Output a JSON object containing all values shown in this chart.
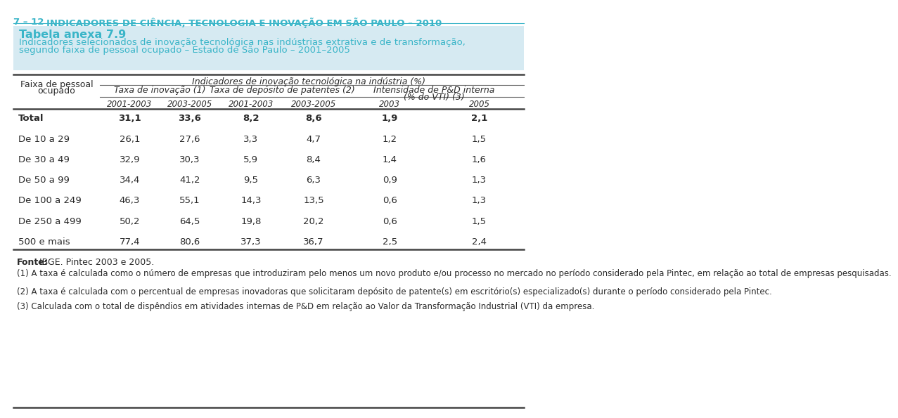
{
  "page_header_num": "7 – 12",
  "page_header_text": "INDICADORES DE CIÊNCIA, TECNOLOGIA E INOVAÇÃO EM SÃO PAULO – 2010",
  "header_color": "#3ab5c8",
  "box_bg_color": "#d6eaf2",
  "table_title_line1": "Tabela anexa 7.9",
  "table_title_line2": "Indicadores selecionados de inovação tecnológica nas indústrias extrativa e de transformação,",
  "table_title_line3": "segundo faixa de pessoal ocupado – Estado de São Paulo – 2001–2005",
  "col_header_main": "Indicadores de inovação tecnológica na indústria (%)",
  "col_header_left_line1": "Faixa de pessoal",
  "col_header_left_line2": "ocupado",
  "col_header_c1": "Taxa de inovação (1)",
  "col_header_c2": "Taxa de depósito de patentes (2)",
  "col_header_c3_line1": "Intensidade de P&D interna",
  "col_header_c3_line2": "(% do VTI) (3)",
  "subheaders": [
    "2001-2003",
    "2003-2005",
    "2001-2003",
    "2003-2005",
    "2003",
    "2005"
  ],
  "rows": [
    {
      "label": "Total",
      "bold": true,
      "values": [
        "31,1",
        "33,6",
        "8,2",
        "8,6",
        "1,9",
        "2,1"
      ]
    },
    {
      "label": "De 10 a 29",
      "bold": false,
      "values": [
        "26,1",
        "27,6",
        "3,3",
        "4,7",
        "1,2",
        "1,5"
      ]
    },
    {
      "label": "De 30 a 49",
      "bold": false,
      "values": [
        "32,9",
        "30,3",
        "5,9",
        "8,4",
        "1,4",
        "1,6"
      ]
    },
    {
      "label": "De 50 a 99",
      "bold": false,
      "values": [
        "34,4",
        "41,2",
        "9,5",
        "6,3",
        "0,9",
        "1,3"
      ]
    },
    {
      "label": "De 100 a 249",
      "bold": false,
      "values": [
        "46,3",
        "55,1",
        "14,3",
        "13,5",
        "0,6",
        "1,3"
      ]
    },
    {
      "label": "De 250 a 499",
      "bold": false,
      "values": [
        "50,2",
        "64,5",
        "19,8",
        "20,2",
        "0,6",
        "1,5"
      ]
    },
    {
      "label": "500 e mais",
      "bold": false,
      "values": [
        "77,4",
        "80,6",
        "37,3",
        "36,7",
        "2,5",
        "2,4"
      ]
    }
  ],
  "fonte_bold": "Fonte:",
  "fonte_text": " IBGE. Pintec 2003 e 2005.",
  "note1": "(1) A taxa é calculada como o número de empresas que introduziram pelo menos um novo produto e/ou processo no mercado no período considerado pela Pintec, em relação ao total de empresas pesquisadas.",
  "note2": "(2) A taxa é calculada com o percentual de empresas inovadoras que solicitaram depósito de patente(s) em escritório(s) especializado(s) durante o período considerado pela Pintec.",
  "note3": "(3) Calculada com o total de dispêndios em atividades internas de P&D em relação ao Valor da Transformação Industrial (VTI) da empresa.",
  "text_color": "#2a2a2a",
  "bg_white": "#ffffff",
  "line_color": "#666666",
  "thick_line_color": "#444444"
}
